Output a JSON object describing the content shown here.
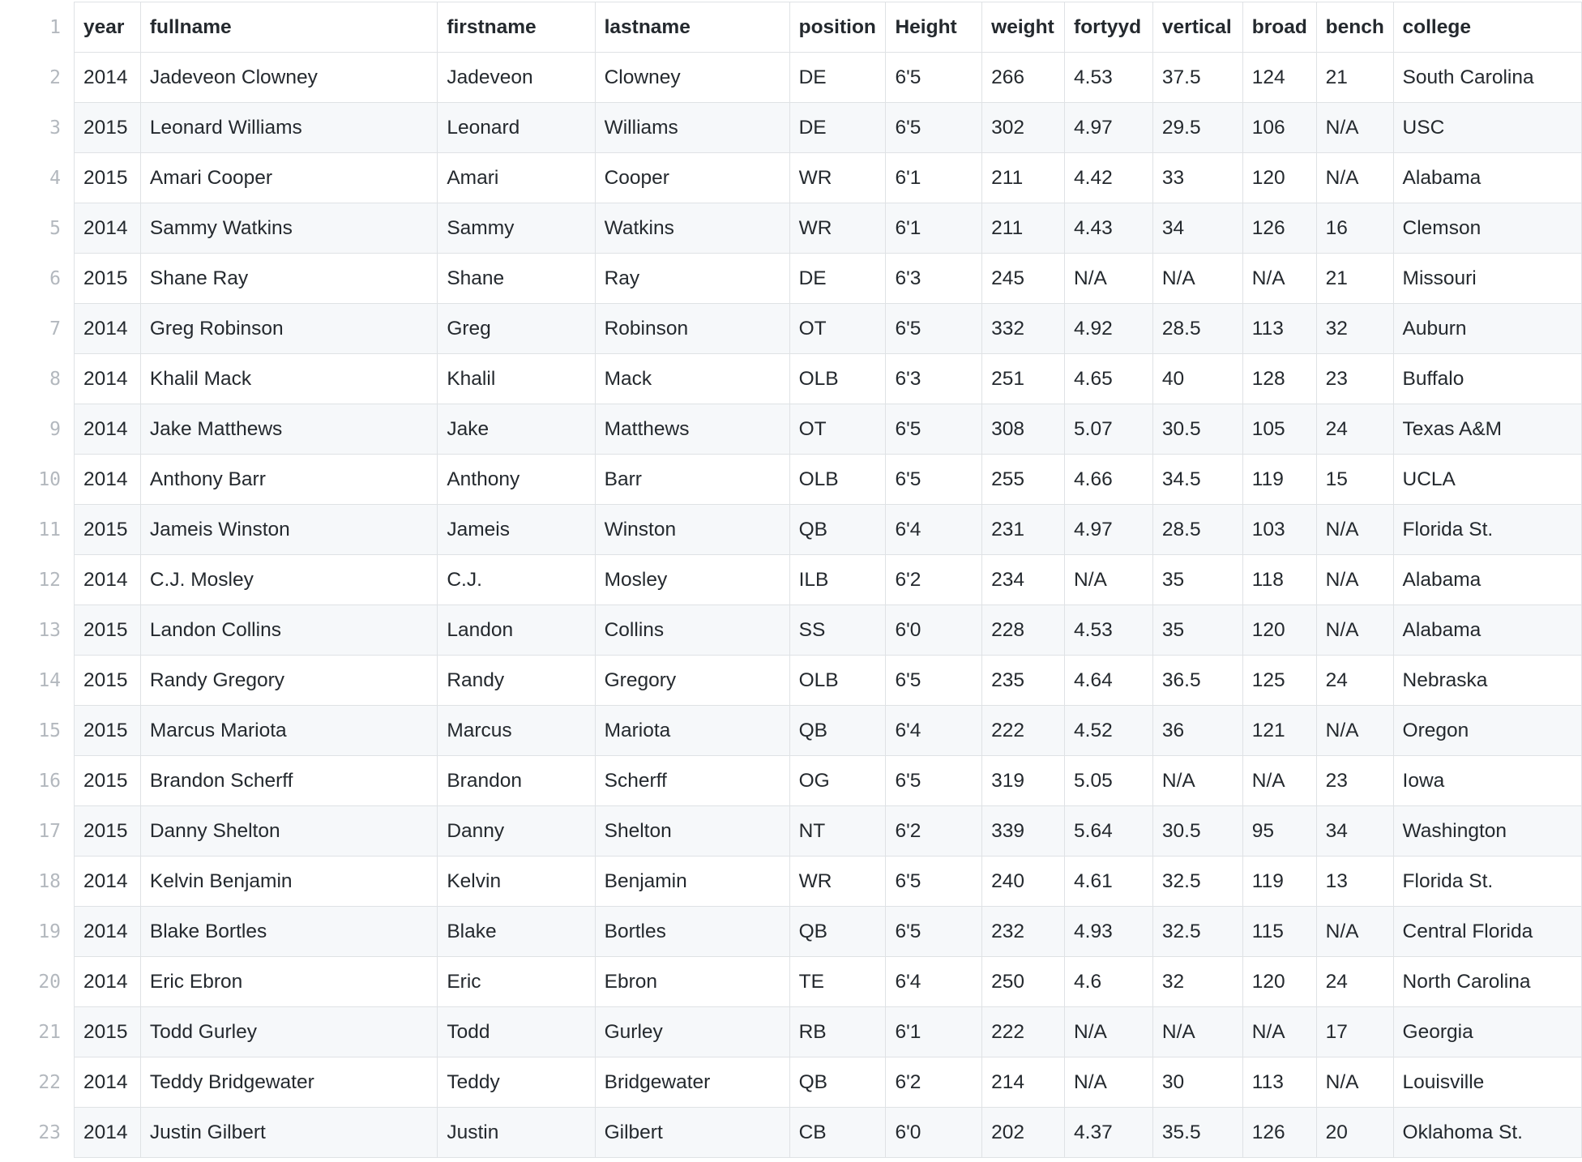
{
  "table": {
    "line_numbers": [
      1,
      2,
      3,
      4,
      5,
      6,
      7,
      8,
      9,
      10,
      11,
      12,
      13,
      14,
      15,
      16,
      17,
      18,
      19,
      20,
      21,
      22,
      23
    ],
    "headers": [
      "year",
      "fullname",
      "firstname",
      "lastname",
      "position",
      "Height",
      "weight",
      "fortyyd",
      "vertical",
      "broad",
      "bench",
      "college"
    ],
    "rows": [
      [
        "2014",
        "Jadeveon Clowney",
        "Jadeveon",
        "Clowney",
        "DE",
        "6'5",
        "266",
        "4.53",
        "37.5",
        "124",
        "21",
        "South Carolina"
      ],
      [
        "2015",
        "Leonard Williams",
        "Leonard",
        "Williams",
        "DE",
        "6'5",
        "302",
        "4.97",
        "29.5",
        "106",
        "N/A",
        "USC"
      ],
      [
        "2015",
        "Amari Cooper",
        "Amari",
        "Cooper",
        "WR",
        "6'1",
        "211",
        "4.42",
        "33",
        "120",
        "N/A",
        "Alabama"
      ],
      [
        "2014",
        "Sammy Watkins",
        "Sammy",
        "Watkins",
        "WR",
        "6'1",
        "211",
        "4.43",
        "34",
        "126",
        "16",
        "Clemson"
      ],
      [
        "2015",
        "Shane Ray",
        "Shane",
        "Ray",
        "DE",
        "6'3",
        "245",
        "N/A",
        "N/A",
        "N/A",
        "21",
        "Missouri"
      ],
      [
        "2014",
        "Greg Robinson",
        "Greg",
        "Robinson",
        "OT",
        "6'5",
        "332",
        "4.92",
        "28.5",
        "113",
        "32",
        "Auburn"
      ],
      [
        "2014",
        "Khalil Mack",
        "Khalil",
        "Mack",
        "OLB",
        "6'3",
        "251",
        "4.65",
        "40",
        "128",
        "23",
        "Buffalo"
      ],
      [
        "2014",
        "Jake Matthews",
        "Jake",
        "Matthews",
        "OT",
        "6'5",
        "308",
        "5.07",
        "30.5",
        "105",
        "24",
        "Texas A&M"
      ],
      [
        "2014",
        "Anthony Barr",
        "Anthony",
        "Barr",
        "OLB",
        "6'5",
        "255",
        "4.66",
        "34.5",
        "119",
        "15",
        "UCLA"
      ],
      [
        "2015",
        "Jameis Winston",
        "Jameis",
        "Winston",
        "QB",
        "6'4",
        "231",
        "4.97",
        "28.5",
        "103",
        "N/A",
        "Florida St."
      ],
      [
        "2014",
        "C.J. Mosley",
        "C.J.",
        "Mosley",
        "ILB",
        "6'2",
        "234",
        "N/A",
        "35",
        "118",
        "N/A",
        "Alabama"
      ],
      [
        "2015",
        "Landon Collins",
        "Landon",
        "Collins",
        "SS",
        "6'0",
        "228",
        "4.53",
        "35",
        "120",
        "N/A",
        "Alabama"
      ],
      [
        "2015",
        "Randy Gregory",
        "Randy",
        "Gregory",
        "OLB",
        "6'5",
        "235",
        "4.64",
        "36.5",
        "125",
        "24",
        "Nebraska"
      ],
      [
        "2015",
        "Marcus Mariota",
        "Marcus",
        "Mariota",
        "QB",
        "6'4",
        "222",
        "4.52",
        "36",
        "121",
        "N/A",
        "Oregon"
      ],
      [
        "2015",
        "Brandon Scherff",
        "Brandon",
        "Scherff",
        "OG",
        "6'5",
        "319",
        "5.05",
        "N/A",
        "N/A",
        "23",
        "Iowa"
      ],
      [
        "2015",
        "Danny Shelton",
        "Danny",
        "Shelton",
        "NT",
        "6'2",
        "339",
        "5.64",
        "30.5",
        "95",
        "34",
        "Washington"
      ],
      [
        "2014",
        "Kelvin Benjamin",
        "Kelvin",
        "Benjamin",
        "WR",
        "6'5",
        "240",
        "4.61",
        "32.5",
        "119",
        "13",
        "Florida St."
      ],
      [
        "2014",
        "Blake Bortles",
        "Blake",
        "Bortles",
        "QB",
        "6'5",
        "232",
        "4.93",
        "32.5",
        "115",
        "N/A",
        "Central Florida"
      ],
      [
        "2014",
        "Eric Ebron",
        "Eric",
        "Ebron",
        "TE",
        "6'4",
        "250",
        "4.6",
        "32",
        "120",
        "24",
        "North Carolina"
      ],
      [
        "2015",
        "Todd Gurley",
        "Todd",
        "Gurley",
        "RB",
        "6'1",
        "222",
        "N/A",
        "N/A",
        "N/A",
        "17",
        "Georgia"
      ],
      [
        "2014",
        "Teddy Bridgewater",
        "Teddy",
        "Bridgewater",
        "QB",
        "6'2",
        "214",
        "N/A",
        "30",
        "113",
        "N/A",
        "Louisville"
      ],
      [
        "2014",
        "Justin Gilbert",
        "Justin",
        "Gilbert",
        "CB",
        "6'0",
        "202",
        "4.37",
        "35.5",
        "126",
        "20",
        "Oklahoma St."
      ]
    ]
  },
  "colors": {
    "grid_line": "#dfe2e5",
    "stripe": "#f6f8fa",
    "line_number": "#b3b8be",
    "text": "#24292e"
  }
}
